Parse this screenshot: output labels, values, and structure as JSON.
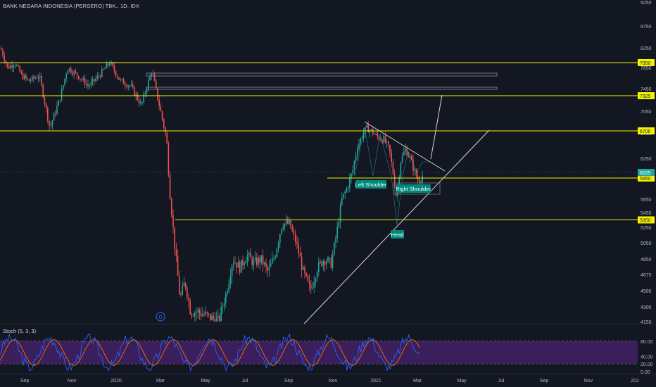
{
  "header": {
    "title": "BANK NEGARA INDONESIA (PERSERO) TBK., 1D, IDX"
  },
  "stoch_panel": {
    "title": "Stoch (5, 3, 3)"
  },
  "colors": {
    "background": "#131722",
    "up": "#26a69a",
    "down": "#ef5350",
    "level_line": "#f5f200",
    "price_tag_bg": "#f5f200",
    "trend_line": "#d1d4dc",
    "pattern_label": "#00897b",
    "stoch_band": "#3b1e5c",
    "stoch_k": "#2962ff",
    "stoch_d": "#ff6d00",
    "axis_text": "#b2b5be",
    "separator": "#2a2e39"
  },
  "chart_data": {
    "type": "candlestick",
    "x_labels": [
      "Sep",
      "Nov",
      "2020",
      "Mar",
      "May",
      "Jul",
      "Sep",
      "Nov",
      "2021",
      "Mar",
      "May",
      "Jul",
      "Sep",
      "Nov",
      "202"
    ],
    "y_ticks": [
      "9250",
      "8750",
      "8250",
      "7850",
      "7450",
      "7050",
      "6700",
      "6250",
      "6025",
      "5650",
      "5450",
      "5250",
      "5050",
      "4850",
      "4675",
      "4500",
      "4300",
      "4150"
    ],
    "horizontal_levels": [
      {
        "price": 7950,
        "label": "7950"
      },
      {
        "price": 7325,
        "label": "7325"
      },
      {
        "price": 6700,
        "label": "6700"
      },
      {
        "price": 5950,
        "label": "5950"
      },
      {
        "price": 5350,
        "label": "5350"
      }
    ],
    "last_price": "6025",
    "annotations": [
      "Left Shoulder",
      "Head",
      "Right Shoulder"
    ],
    "marker": "D",
    "price_path": [
      [
        0,
        8250
      ],
      [
        10,
        7850
      ],
      [
        20,
        7950
      ],
      [
        30,
        7700
      ],
      [
        40,
        7600
      ],
      [
        55,
        7700
      ],
      [
        70,
        6750
      ],
      [
        85,
        7300
      ],
      [
        95,
        7850
      ],
      [
        110,
        7700
      ],
      [
        125,
        7500
      ],
      [
        140,
        7700
      ],
      [
        155,
        7950
      ],
      [
        170,
        7600
      ],
      [
        185,
        7500
      ],
      [
        200,
        7150
      ],
      [
        215,
        7800
      ],
      [
        222,
        7350
      ],
      [
        230,
        6900
      ],
      [
        236,
        6550
      ],
      [
        240,
        5800
      ],
      [
        244,
        5350
      ],
      [
        248,
        4950
      ],
      [
        255,
        4400
      ],
      [
        262,
        4600
      ],
      [
        270,
        4250
      ],
      [
        280,
        4250
      ],
      [
        295,
        4200
      ],
      [
        310,
        4150
      ],
      [
        320,
        4450
      ],
      [
        330,
        4850
      ],
      [
        340,
        4750
      ],
      [
        350,
        4900
      ],
      [
        360,
        4800
      ],
      [
        370,
        4850
      ],
      [
        380,
        4700
      ],
      [
        390,
        4900
      ],
      [
        400,
        5300
      ],
      [
        410,
        5300
      ],
      [
        420,
        5050
      ],
      [
        430,
        4700
      ],
      [
        440,
        4500
      ],
      [
        450,
        4750
      ],
      [
        460,
        4850
      ],
      [
        470,
        4800
      ],
      [
        478,
        5200
      ],
      [
        485,
        5650
      ],
      [
        492,
        5800
      ],
      [
        500,
        6050
      ],
      [
        507,
        6450
      ],
      [
        515,
        6650
      ],
      [
        520,
        6750
      ],
      [
        527,
        6700
      ],
      [
        535,
        6600
      ],
      [
        545,
        6550
      ],
      [
        552,
        6400
      ],
      [
        558,
        6000
      ],
      [
        563,
        5650
      ],
      [
        568,
        6200
      ],
      [
        575,
        6400
      ],
      [
        582,
        6250
      ],
      [
        588,
        6050
      ],
      [
        594,
        5900
      ],
      [
        600,
        6000
      ]
    ],
    "stoch": {
      "range": [
        0,
        100
      ],
      "ticks": [
        "80.00",
        "40.00",
        "20.00",
        "0.00"
      ],
      "band": [
        20,
        80
      ]
    }
  }
}
